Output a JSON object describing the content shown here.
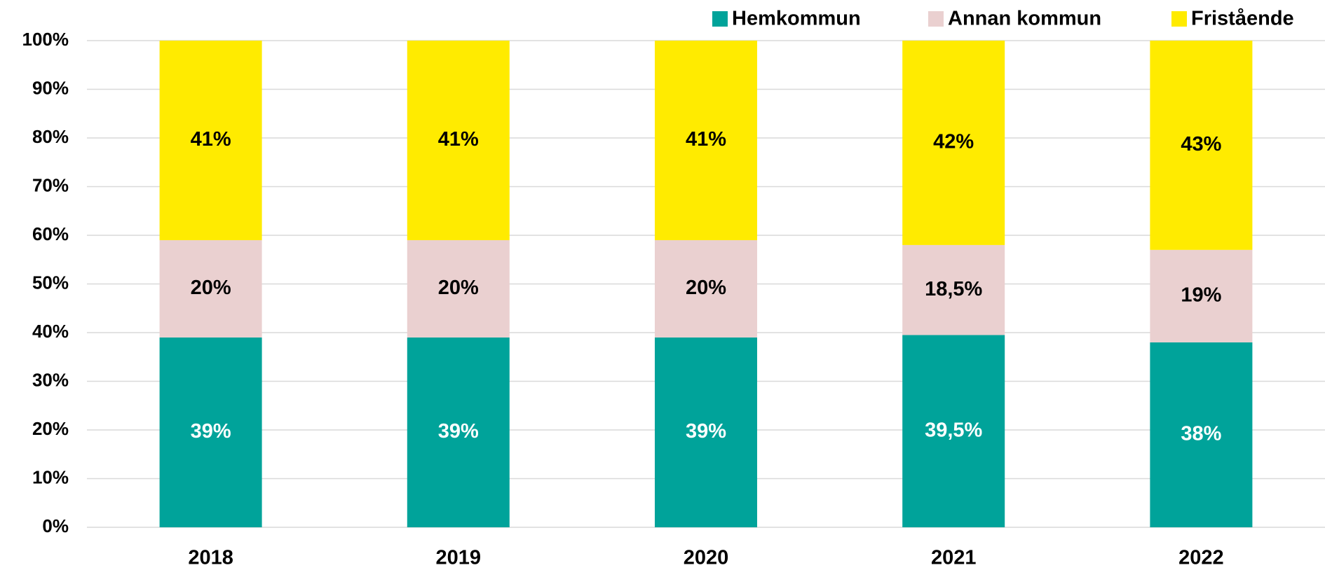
{
  "chart_data": {
    "type": "stacked_bar",
    "categories": [
      "2018",
      "2019",
      "2020",
      "2021",
      "2022"
    ],
    "series": [
      {
        "name": "Hemkommun",
        "color": "#00a39a",
        "label_color": "#ffffff",
        "values": [
          39,
          39,
          39,
          39.5,
          38
        ],
        "value_labels": [
          "39%",
          "39%",
          "39%",
          "39,5%",
          "38%"
        ]
      },
      {
        "name": "Annan kommun",
        "color": "#ead0d0",
        "label_color": "#000000",
        "values": [
          20,
          20,
          20,
          18.5,
          19
        ],
        "value_labels": [
          "20%",
          "20%",
          "20%",
          "18,5%",
          "19%"
        ]
      },
      {
        "name": "Fristående",
        "color": "#ffeb00",
        "label_color": "#000000",
        "values": [
          41,
          41,
          41,
          42,
          43
        ],
        "value_labels": [
          "41%",
          "41%",
          "41%",
          "42%",
          "43%"
        ]
      }
    ],
    "ylim": [
      0,
      100
    ],
    "yticks": [
      {
        "value": 0,
        "label": "0%"
      },
      {
        "value": 10,
        "label": "10%"
      },
      {
        "value": 20,
        "label": "20%"
      },
      {
        "value": 30,
        "label": "30%"
      },
      {
        "value": 40,
        "label": "40%"
      },
      {
        "value": 50,
        "label": "50%"
      },
      {
        "value": 60,
        "label": "60%"
      },
      {
        "value": 70,
        "label": "70%"
      },
      {
        "value": 80,
        "label": "80%"
      },
      {
        "value": 90,
        "label": "90%"
      },
      {
        "value": 100,
        "label": "100%"
      }
    ],
    "grid": true,
    "legend": "top-right"
  }
}
